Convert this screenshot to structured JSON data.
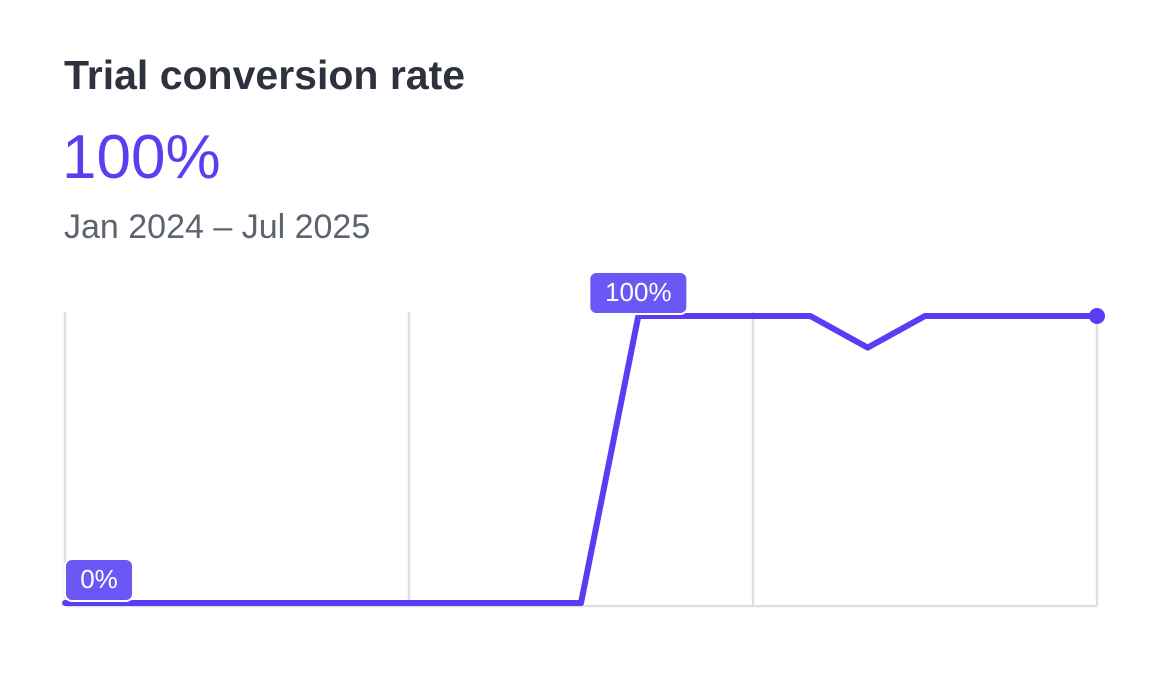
{
  "chart_data": {
    "type": "line",
    "title": "Trial conversion rate",
    "headline": "100%",
    "subtitle": "Jan 2024 – Jul 2025",
    "categories": [
      null,
      null,
      null,
      null,
      null,
      null,
      null,
      null,
      null,
      null,
      null,
      null,
      null,
      null,
      null,
      null,
      null,
      null,
      null
    ],
    "series": [
      {
        "color": "#5b3cf2",
        "values": [
          0,
          0,
          0,
          0,
          0,
          0,
          0,
          0,
          0,
          0,
          100,
          100,
          100,
          100,
          89,
          100,
          100,
          100,
          100
        ],
        "value_labels": [
          "0%",
          null,
          null,
          null,
          null,
          null,
          null,
          null,
          null,
          null,
          "100%",
          null,
          null,
          null,
          null,
          null,
          null,
          null,
          null
        ]
      }
    ],
    "ylim": [
      0,
      100
    ],
    "xgrid_at": [
      0,
      6,
      12,
      18
    ],
    "grid": true,
    "label_color": "#6b56f6"
  }
}
